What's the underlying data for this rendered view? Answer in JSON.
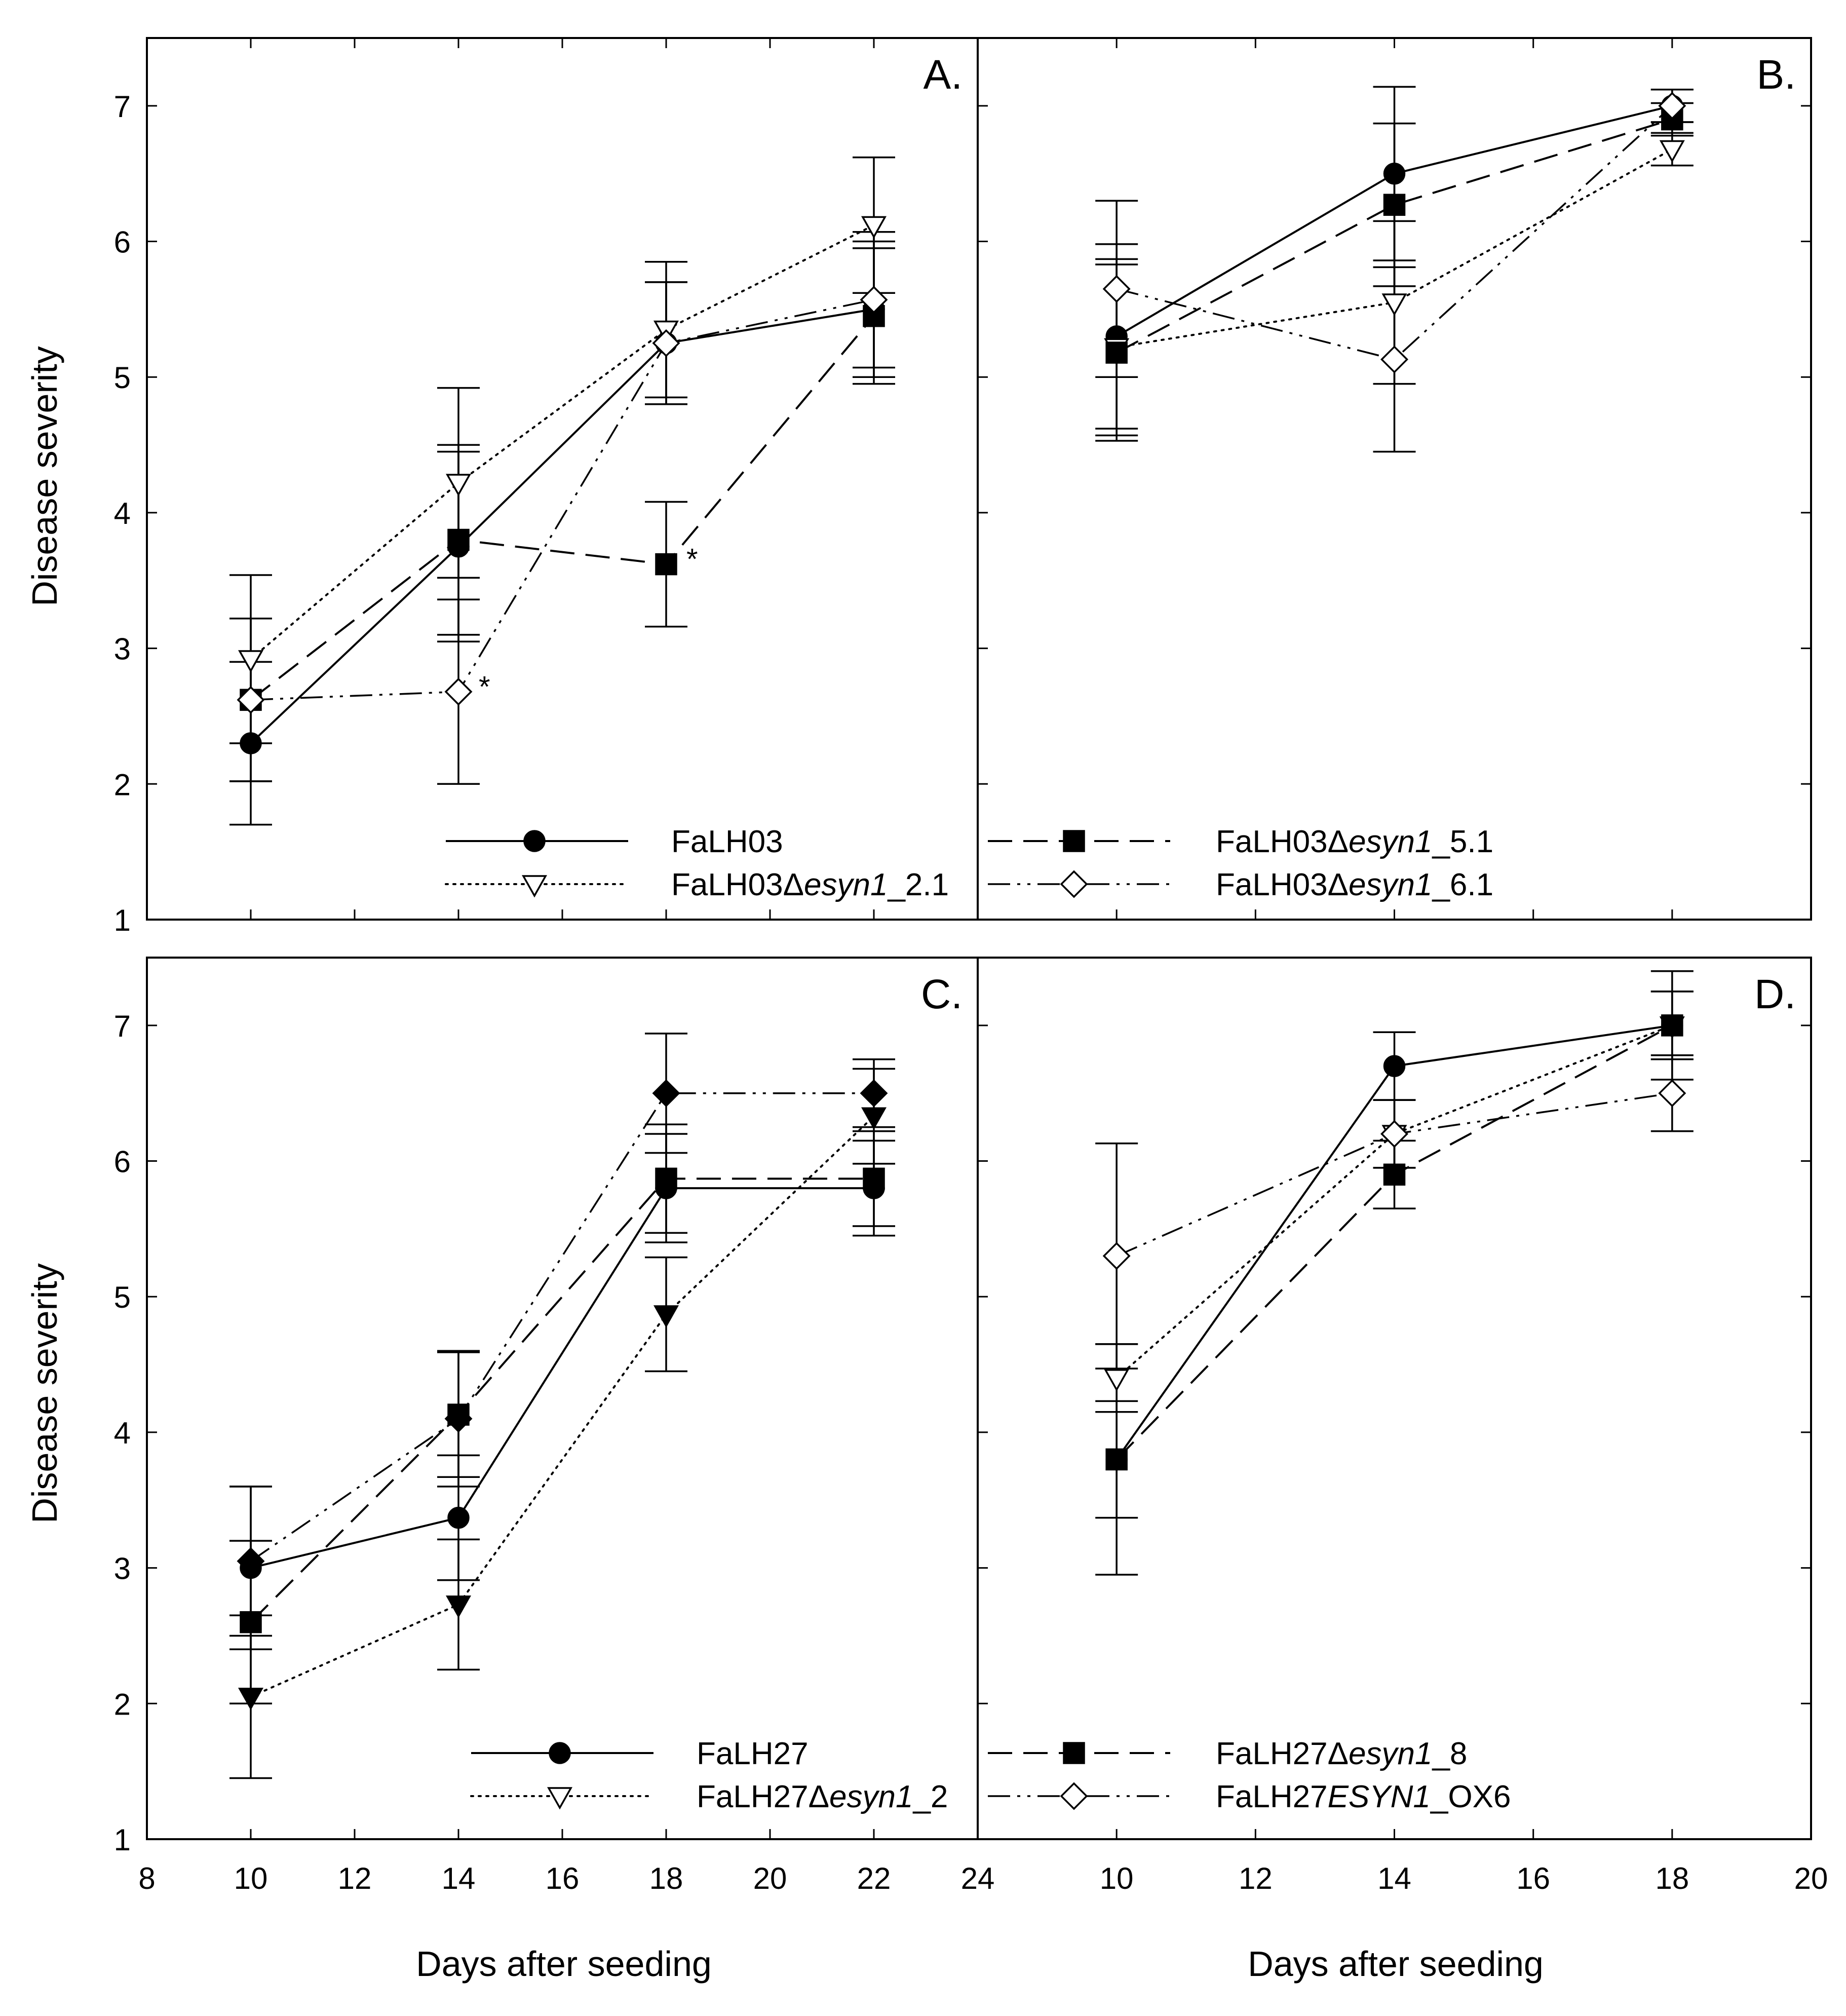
{
  "figure": {
    "ylabel": "Disease severity",
    "xlabel": "Days after seeding"
  },
  "chart_data": [
    {
      "panel": "A.",
      "type": "line",
      "xlim": [
        8,
        24
      ],
      "ylim": [
        1,
        7.5
      ],
      "xticks": [
        8,
        10,
        12,
        14,
        16,
        18,
        20,
        22,
        24
      ],
      "yticks": [
        1,
        2,
        3,
        4,
        5,
        6,
        7
      ],
      "series": [
        {
          "name": "FaLH03",
          "name_parts": [
            "FaLH03"
          ],
          "dash": "solid",
          "marker": "circle",
          "fill": "black",
          "x": [
            10,
            14,
            18,
            22
          ],
          "y": [
            2.3,
            3.75,
            5.25,
            5.5
          ],
          "err": [
            0.6,
            0.7,
            0.45,
            0.5
          ],
          "stars": [
            false,
            false,
            false,
            false
          ]
        },
        {
          "name": "FaLH03Δesyn1_2.1",
          "name_parts": [
            "FaLH03Δ",
            "esyn1",
            "_2.1"
          ],
          "dash": "dotted",
          "marker": "triangle-down",
          "fill": "white",
          "x": [
            10,
            14,
            18,
            22
          ],
          "y": [
            2.92,
            4.22,
            5.35,
            6.12
          ],
          "err": [
            0.62,
            0.7,
            0.5,
            0.5
          ],
          "stars": [
            false,
            false,
            false,
            false
          ]
        },
        {
          "name": "FaLH03Δesyn1_5.1",
          "name_parts": [
            "FaLH03Δ",
            "esyn1",
            "_5.1"
          ],
          "dash": "longdash",
          "marker": "square",
          "fill": "black",
          "x": [
            10,
            14,
            18,
            22
          ],
          "y": [
            2.62,
            3.8,
            3.62,
            5.45
          ],
          "err": [
            0.6,
            0.7,
            0.46,
            0.5
          ],
          "stars": [
            false,
            false,
            true,
            false
          ]
        },
        {
          "name": "FaLH03Δesyn1_6.1",
          "name_parts": [
            "FaLH03Δ",
            "esyn1",
            "_6.1"
          ],
          "dash": "dashdotdot",
          "marker": "diamond",
          "fill": "white",
          "x": [
            10,
            14,
            18,
            22
          ],
          "y": [
            2.62,
            2.68,
            5.25,
            5.57
          ],
          "err": [
            0.6,
            0.68,
            0.45,
            0.5
          ],
          "stars": [
            false,
            true,
            false,
            false
          ]
        }
      ],
      "annotation_symbol": "*"
    },
    {
      "panel": "B.",
      "type": "line",
      "xlim": [
        8,
        20
      ],
      "ylim": [
        1,
        7.5
      ],
      "xticks": [
        10,
        12,
        14,
        16,
        18,
        20
      ],
      "yticks": [
        1,
        2,
        3,
        4,
        5,
        6,
        7
      ],
      "series": [
        {
          "name": "FaLH03",
          "dash": "solid",
          "marker": "circle",
          "fill": "black",
          "x": [
            10,
            14,
            18
          ],
          "y": [
            5.3,
            6.5,
            7.0
          ],
          "err": [
            0.68,
            0.64,
            0.12
          ]
        },
        {
          "name": "FaLH03Δesyn1_2.1",
          "dash": "dotted",
          "marker": "triangle-down",
          "fill": "white",
          "x": [
            10,
            14,
            18
          ],
          "y": [
            5.22,
            5.55,
            6.68
          ],
          "err": [
            0.65,
            0.6,
            0.12
          ]
        },
        {
          "name": "FaLH03Δesyn1_5.1",
          "dash": "longdash",
          "marker": "square",
          "fill": "black",
          "x": [
            10,
            14,
            18
          ],
          "y": [
            5.18,
            6.27,
            6.9
          ],
          "err": [
            0.65,
            0.6,
            0.12
          ]
        },
        {
          "name": "FaLH03Δesyn1_6.1",
          "dash": "dashdotdot",
          "marker": "diamond",
          "fill": "white",
          "x": [
            10,
            14,
            18
          ],
          "y": [
            5.65,
            5.13,
            7.0
          ],
          "err": [
            0.65,
            0.68,
            0.12
          ]
        }
      ]
    },
    {
      "panel": "C.",
      "type": "line",
      "xlim": [
        8,
        24
      ],
      "ylim": [
        1,
        7.5
      ],
      "xticks": [
        8,
        10,
        12,
        14,
        16,
        18,
        20,
        22,
        24
      ],
      "yticks": [
        1,
        2,
        3,
        4,
        5,
        6,
        7
      ],
      "series": [
        {
          "name": "FaLH27",
          "name_parts": [
            "FaLH27"
          ],
          "dash": "solid",
          "marker": "circle",
          "fill": "black",
          "x": [
            10,
            14,
            18,
            22
          ],
          "y": [
            3.0,
            3.37,
            5.8,
            5.8
          ],
          "err": [
            0.6,
            0.46,
            0.4,
            0.35
          ]
        },
        {
          "name": "FaLH27Δesyn1_2",
          "name_parts": [
            "FaLH27Δ",
            "esyn1",
            "_2"
          ],
          "dash": "dotted",
          "marker": "triangle-down",
          "fill": "black",
          "x": [
            10,
            14,
            18,
            22
          ],
          "y": [
            2.05,
            2.73,
            4.87,
            6.33
          ],
          "err": [
            0.6,
            0.48,
            0.42,
            0.35
          ]
        },
        {
          "name": "FaLH27Δesyn1_8",
          "name_parts": [
            "FaLH27Δ",
            "esyn1",
            "_8"
          ],
          "dash": "longdash",
          "marker": "square",
          "fill": "black",
          "x": [
            10,
            14,
            18,
            22
          ],
          "y": [
            2.6,
            4.13,
            5.87,
            5.87
          ],
          "err": [
            0.6,
            0.46,
            0.4,
            0.35
          ]
        },
        {
          "name": "FaLH27ESYN1_OX6",
          "name_parts": [
            "FaLH27",
            "ESYN1",
            "_OX6"
          ],
          "dash": "dashdotdot",
          "marker": "diamond",
          "fill": "black",
          "x": [
            10,
            14,
            18,
            22
          ],
          "y": [
            3.05,
            4.1,
            6.5,
            6.5
          ],
          "err": [
            0.55,
            0.5,
            0.44,
            0.25
          ]
        }
      ]
    },
    {
      "panel": "D.",
      "type": "line",
      "xlim": [
        8,
        20
      ],
      "ylim": [
        1,
        7.5
      ],
      "xticks": [
        10,
        12,
        14,
        16,
        18,
        20
      ],
      "yticks": [
        1,
        2,
        3,
        4,
        5,
        6,
        7
      ],
      "series": [
        {
          "name": "FaLH27",
          "dash": "solid",
          "marker": "circle",
          "fill": "black",
          "x": [
            10,
            14,
            18
          ],
          "y": [
            3.8,
            6.7,
            7.0
          ],
          "err": [
            0.85,
            0.25,
            0.25
          ]
        },
        {
          "name": "FaLH27Δesyn1_2",
          "dash": "dotted",
          "marker": "triangle-down",
          "fill": "white",
          "x": [
            10,
            14,
            18
          ],
          "y": [
            4.4,
            6.2,
            7.0
          ],
          "err": [
            0.25,
            0.25,
            0.4
          ]
        },
        {
          "name": "FaLH27Δesyn1_8",
          "dash": "longdash",
          "marker": "square",
          "fill": "black",
          "x": [
            10,
            14,
            18
          ],
          "y": [
            3.8,
            5.9,
            7.0
          ],
          "err": [
            0.43,
            0.25,
            0.25
          ]
        },
        {
          "name": "FaLH27ESYN1_OX6",
          "dash": "dashdotdot",
          "marker": "diamond",
          "fill": "white",
          "x": [
            10,
            14,
            18
          ],
          "y": [
            5.3,
            6.2,
            6.5
          ],
          "err": [
            0.83,
            0.25,
            0.28
          ]
        }
      ]
    }
  ]
}
